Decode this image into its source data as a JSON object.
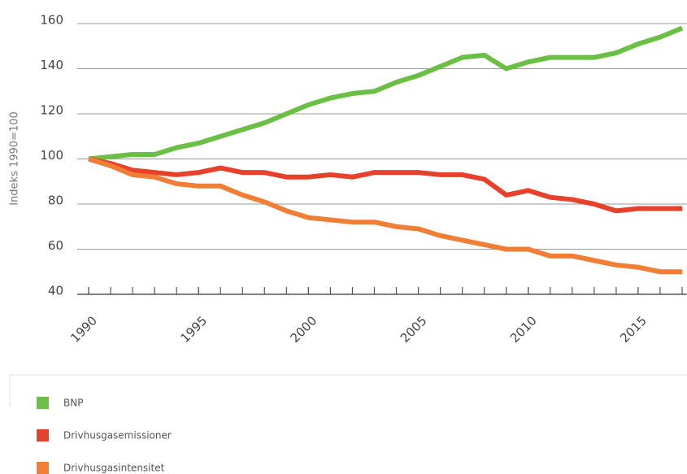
{
  "chart_data": {
    "type": "line",
    "ylabel": "Indeks 1990=100",
    "x": [
      1990,
      1991,
      1992,
      1993,
      1994,
      1995,
      1996,
      1997,
      1998,
      1999,
      2000,
      2001,
      2002,
      2003,
      2004,
      2005,
      2006,
      2007,
      2008,
      2009,
      2010,
      2011,
      2012,
      2013,
      2014,
      2015,
      2016,
      2017
    ],
    "series": [
      {
        "name": "BNP",
        "color": "#6abf45",
        "values": [
          100,
          101,
          102,
          102,
          105,
          107,
          110,
          113,
          116,
          120,
          124,
          127,
          129,
          130,
          134,
          137,
          141,
          145,
          146,
          140,
          143,
          145,
          145,
          145,
          147,
          151,
          154,
          158
        ]
      },
      {
        "name": "Drivhusgasemissioner",
        "color": "#e8412b",
        "values": [
          100,
          98,
          95,
          94,
          93,
          94,
          96,
          94,
          94,
          92,
          92,
          93,
          92,
          94,
          94,
          94,
          93,
          93,
          91,
          84,
          86,
          83,
          82,
          80,
          77,
          78,
          78,
          78
        ]
      },
      {
        "name": "Drivhusgasintensitet",
        "color": "#f07f35",
        "values": [
          100,
          97,
          93,
          92,
          89,
          88,
          88,
          84,
          81,
          77,
          74,
          73,
          72,
          72,
          70,
          69,
          66,
          64,
          62,
          60,
          60,
          57,
          57,
          55,
          53,
          52,
          50,
          50
        ]
      }
    ],
    "xlim": [
      1990,
      2017
    ],
    "xticks": [
      1990,
      1995,
      2000,
      2005,
      2010,
      2015
    ],
    "ylim": [
      40,
      160
    ],
    "yticks": [
      40,
      60,
      80,
      100,
      120,
      140,
      160
    ],
    "grid": true,
    "legend": "bottom"
  }
}
